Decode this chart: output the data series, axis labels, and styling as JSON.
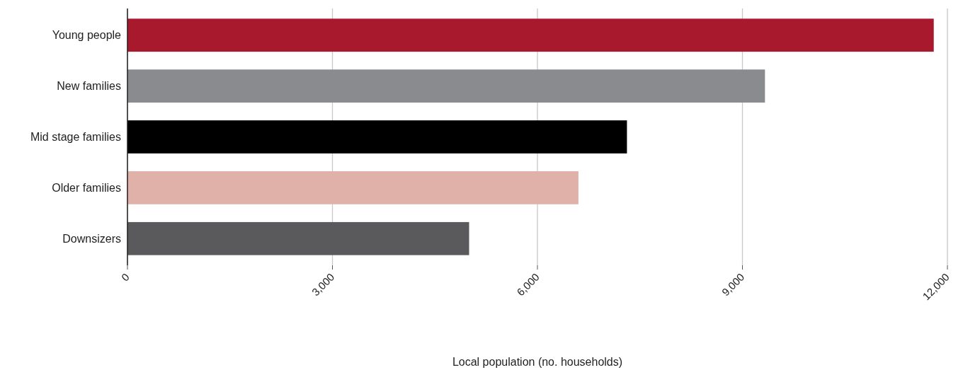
{
  "chart_data": {
    "type": "bar",
    "orientation": "horizontal",
    "categories": [
      "Young people",
      "New families",
      "Mid stage families",
      "Older families",
      "Downsizers"
    ],
    "values": [
      11800,
      9330,
      7310,
      6600,
      5000
    ],
    "colors": [
      "#a8192e",
      "#8a8b8f",
      "#000000",
      "#e0b1a8",
      "#5a5a5c"
    ],
    "xlabel": "Local population (no. households)",
    "xlim": [
      0,
      12000
    ],
    "xticks": [
      {
        "value": 0,
        "label": "0"
      },
      {
        "value": 3000,
        "label": "3,000"
      },
      {
        "value": 6000,
        "label": "6,000"
      },
      {
        "value": 9000,
        "label": "9,000"
      },
      {
        "value": 12000,
        "label": "12,000"
      }
    ],
    "grid": "x"
  }
}
